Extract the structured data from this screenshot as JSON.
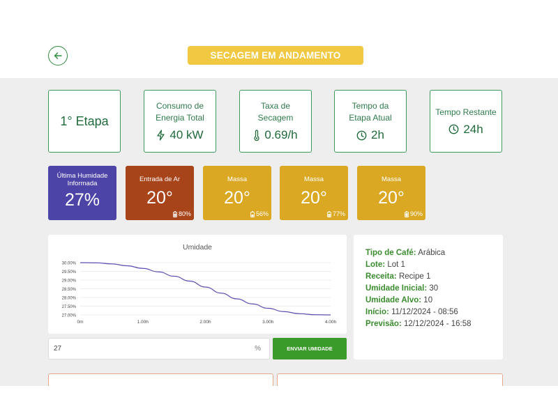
{
  "header": {
    "status": "SECAGEM EM ANDAMENTO"
  },
  "stats": [
    {
      "label": "",
      "value": "1° Etapa",
      "icon": ""
    },
    {
      "label": "Consumo de Energia Total",
      "value": "40 kW",
      "icon": "lightning-icon"
    },
    {
      "label": "Taxa de Secagem",
      "value": "0.69/h",
      "icon": "thermometer-icon"
    },
    {
      "label": "Tempo da Etapa Atual",
      "value": "2h",
      "icon": "clock-icon"
    },
    {
      "label": "Tempo Restante",
      "value": "24h",
      "icon": "clock-icon"
    }
  ],
  "sensors": [
    {
      "label": "Última Humidade Informada",
      "value": "27%",
      "battery": "",
      "color": "#4d44a8"
    },
    {
      "label": "Entrada de Ar",
      "value": "20°",
      "battery": "80%",
      "color": "#a8441a"
    },
    {
      "label": "Massa",
      "value": "20°",
      "battery": "56%",
      "color": "#dba824"
    },
    {
      "label": "Massa",
      "value": "20°",
      "battery": "77%",
      "color": "#dba824"
    },
    {
      "label": "Massa",
      "value": "20°",
      "battery": "90%",
      "color": "#dba824"
    }
  ],
  "humidity_input": {
    "value": "27",
    "unit": "%",
    "button_label": "ENVIAR UMIDADE"
  },
  "info": [
    {
      "key": "Tipo de Café:",
      "value": "Arábica"
    },
    {
      "key": "Lote:",
      "value": "Lot 1"
    },
    {
      "key": "Receita:",
      "value": "Recipe 1"
    },
    {
      "key": "Umidade Inicial:",
      "value": "30"
    },
    {
      "key": "Umidade Alvo:",
      "value": "10"
    },
    {
      "key": "Início:",
      "value": "11/12/2024 - 08:56"
    },
    {
      "key": "Previsão:",
      "value": "12/12/2024 - 16:58"
    }
  ],
  "colors": {
    "accent_green": "#3a9a2a",
    "status_yellow": "#f0c842",
    "line": "#5a4fb0"
  },
  "chart_data": {
    "type": "line",
    "title": "Umidade",
    "xlabel": "",
    "ylabel": "",
    "x_ticks": [
      "0m",
      "1.00h",
      "2.00h",
      "3.00h",
      "4.00h"
    ],
    "y_ticks": [
      "30.00%",
      "29.50%",
      "29.00%",
      "28.50%",
      "28.00%",
      "27.50%",
      "27.00%"
    ],
    "xlim": [
      0,
      4
    ],
    "ylim": [
      27,
      30
    ],
    "grid": true,
    "series": [
      {
        "x": [
          0,
          0.25,
          0.5,
          0.75,
          1.0,
          1.25,
          1.5,
          1.75,
          2.0,
          2.25,
          2.5,
          2.75,
          3.0,
          3.25,
          3.5,
          3.75,
          4.0
        ],
        "values": [
          30.0,
          29.99,
          29.93,
          29.82,
          29.67,
          29.47,
          29.22,
          28.94,
          28.6,
          28.25,
          27.92,
          27.63,
          27.38,
          27.19,
          27.07,
          27.01,
          27.0
        ]
      }
    ]
  }
}
